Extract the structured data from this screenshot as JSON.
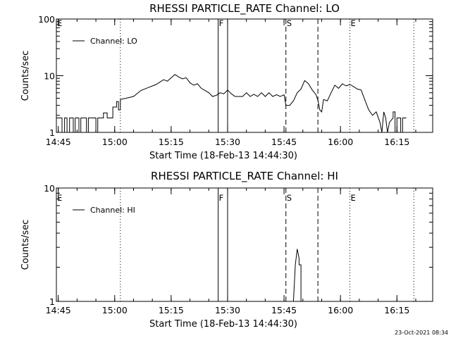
{
  "chart_data": [
    {
      "type": "line",
      "title": "RHESSI PARTICLE_RATE Channel: LO",
      "xlabel": "Start Time (18-Feb-13 14:44:30)",
      "ylabel": "Counts/sec",
      "yscale": "log",
      "ylim": [
        1,
        100
      ],
      "xlim": [
        "14:44:30",
        "16:24:30"
      ],
      "x_ticks": [
        "14:45",
        "15:00",
        "15:15",
        "15:30",
        "15:45",
        "16:00",
        "16:15"
      ],
      "y_ticks": [
        "1",
        "10",
        "100"
      ],
      "legend": "top-left",
      "series": [
        {
          "name": "Channel: LO",
          "points": [
            [
              "14:44:30",
              1.8
            ],
            [
              "14:46:00",
              1.8
            ],
            [
              "14:46:00",
              1.0
            ],
            [
              "14:46:40",
              1.0
            ],
            [
              "14:46:40",
              1.8
            ],
            [
              "14:47:20",
              1.8
            ],
            [
              "14:47:20",
              1.0
            ],
            [
              "14:48:00",
              1.0
            ],
            [
              "14:48:00",
              1.8
            ],
            [
              "14:49:00",
              1.8
            ],
            [
              "14:49:00",
              1.0
            ],
            [
              "14:49:30",
              1.0
            ],
            [
              "14:49:30",
              1.8
            ],
            [
              "14:50:30",
              1.8
            ],
            [
              "14:50:30",
              1.0
            ],
            [
              "14:51:00",
              1.0
            ],
            [
              "14:51:00",
              1.8
            ],
            [
              "14:52:30",
              1.8
            ],
            [
              "14:52:30",
              1.0
            ],
            [
              "14:53:00",
              1.0
            ],
            [
              "14:53:00",
              1.8
            ],
            [
              "14:55:00",
              1.8
            ],
            [
              "14:55:00",
              1.0
            ],
            [
              "14:55:30",
              1.0
            ],
            [
              "14:55:30",
              1.8
            ],
            [
              "14:57:00",
              1.8
            ],
            [
              "14:57:00",
              2.2
            ],
            [
              "14:58:00",
              2.2
            ],
            [
              "14:58:00",
              1.8
            ],
            [
              "14:59:30",
              1.8
            ],
            [
              "14:59:30",
              2.8
            ],
            [
              "15:00:30",
              2.8
            ],
            [
              "15:00:30",
              3.5
            ],
            [
              "15:01:00",
              3.5
            ],
            [
              "15:01:00",
              2.5
            ],
            [
              "15:01:30",
              2.5
            ],
            [
              "15:01:30",
              3.8
            ],
            [
              "15:03:00",
              4.0
            ],
            [
              "15:05:00",
              4.3
            ],
            [
              "15:07:00",
              5.5
            ],
            [
              "15:09:00",
              6.2
            ],
            [
              "15:11:00",
              7.0
            ],
            [
              "15:13:00",
              8.5
            ],
            [
              "15:14:00",
              8.0
            ],
            [
              "15:16:00",
              10.5
            ],
            [
              "15:17:00",
              9.5
            ],
            [
              "15:18:00",
              8.8
            ],
            [
              "15:19:00",
              9.2
            ],
            [
              "15:20:00",
              7.5
            ],
            [
              "15:21:00",
              6.8
            ],
            [
              "15:22:00",
              7.2
            ],
            [
              "15:23:00",
              6.0
            ],
            [
              "15:24:00",
              5.5
            ],
            [
              "15:25:00",
              5.0
            ],
            [
              "15:26:00",
              4.3
            ],
            [
              "15:27:00",
              4.5
            ],
            [
              "15:28:00",
              5.0
            ],
            [
              "15:29:00",
              4.8
            ],
            [
              "15:30:00",
              5.6
            ],
            [
              "15:31:00",
              4.8
            ],
            [
              "15:32:00",
              4.3
            ],
            [
              "15:34:00",
              4.3
            ],
            [
              "15:35:00",
              5.0
            ],
            [
              "15:36:00",
              4.3
            ],
            [
              "15:37:00",
              4.7
            ],
            [
              "15:38:00",
              4.3
            ],
            [
              "15:39:00",
              5.0
            ],
            [
              "15:40:00",
              4.3
            ],
            [
              "15:41:00",
              5.0
            ],
            [
              "15:42:00",
              4.3
            ],
            [
              "15:43:00",
              4.6
            ],
            [
              "15:44:00",
              4.3
            ],
            [
              "15:45:00",
              4.6
            ],
            [
              "15:45:30",
              3.0
            ],
            [
              "15:46:30",
              3.0
            ],
            [
              "15:47:30",
              3.6
            ],
            [
              "15:48:30",
              5.0
            ],
            [
              "15:49:30",
              5.8
            ],
            [
              "15:50:30",
              8.2
            ],
            [
              "15:51:30",
              7.2
            ],
            [
              "15:52:30",
              5.6
            ],
            [
              "15:53:30",
              4.6
            ],
            [
              "15:54:00",
              3.7
            ],
            [
              "15:54:30",
              2.5
            ],
            [
              "15:55:00",
              2.3
            ],
            [
              "15:55:30",
              3.8
            ],
            [
              "15:56:30",
              3.6
            ],
            [
              "15:57:30",
              5.0
            ],
            [
              "15:58:30",
              6.8
            ],
            [
              "15:59:30",
              6.0
            ],
            [
              "16:00:30",
              7.2
            ],
            [
              "16:01:30",
              6.6
            ],
            [
              "16:02:30",
              7.0
            ],
            [
              "16:03:30",
              6.4
            ],
            [
              "16:04:30",
              5.8
            ],
            [
              "16:05:30",
              5.6
            ],
            [
              "16:06:30",
              3.7
            ],
            [
              "16:07:30",
              2.5
            ],
            [
              "16:08:30",
              2.0
            ],
            [
              "16:09:30",
              2.3
            ],
            [
              "16:10:30",
              1.5
            ],
            [
              "16:11:00",
              1.0
            ],
            [
              "16:11:30",
              2.3
            ],
            [
              "16:12:00",
              1.8
            ],
            [
              "16:12:30",
              1.0
            ],
            [
              "16:13:00",
              1.5
            ],
            [
              "16:14:00",
              1.8
            ],
            [
              "16:14:00",
              2.3
            ],
            [
              "16:14:30",
              2.3
            ],
            [
              "16:14:30",
              1.0
            ],
            [
              "16:15:00",
              1.0
            ],
            [
              "16:15:00",
              1.8
            ],
            [
              "16:16:00",
              1.8
            ],
            [
              "16:16:00",
              1.0
            ],
            [
              "16:16:30",
              1.0
            ],
            [
              "16:16:30",
              1.8
            ],
            [
              "16:17:30",
              1.8
            ]
          ]
        }
      ],
      "markers": [
        {
          "label": "E",
          "time": "14:44:30",
          "style": "none"
        },
        {
          "label": "",
          "time": "15:01:30",
          "style": "dotted"
        },
        {
          "label": "F",
          "time": "15:27:30",
          "style": "solid"
        },
        {
          "label": "",
          "time": "15:30:00",
          "style": "solid"
        },
        {
          "label": "S",
          "time": "15:45:30",
          "style": "dashed"
        },
        {
          "label": "",
          "time": "15:54:00",
          "style": "dashed"
        },
        {
          "label": "E",
          "time": "16:02:30",
          "style": "dotted"
        },
        {
          "label": "",
          "time": "16:19:30",
          "style": "dotted"
        }
      ]
    },
    {
      "type": "line",
      "title": "RHESSI PARTICLE_RATE Channel: HI",
      "xlabel": "Start Time (18-Feb-13 14:44:30)",
      "ylabel": "Counts/sec",
      "yscale": "log",
      "ylim": [
        1,
        10
      ],
      "xlim": [
        "14:44:30",
        "16:24:30"
      ],
      "x_ticks": [
        "14:45",
        "15:00",
        "15:15",
        "15:30",
        "15:45",
        "16:00",
        "16:15"
      ],
      "y_ticks": [
        "1",
        "10"
      ],
      "legend": "top-left",
      "series": [
        {
          "name": "Channel: HI",
          "points": [
            [
              "15:47:30",
              1.0
            ],
            [
              "15:48:00",
              2.1
            ],
            [
              "15:48:30",
              2.9
            ],
            [
              "15:49:00",
              2.4
            ],
            [
              "15:49:00",
              2.1
            ],
            [
              "15:49:30",
              2.1
            ],
            [
              "15:49:30",
              1.0
            ]
          ]
        }
      ],
      "markers": [
        {
          "label": "E",
          "time": "14:44:30",
          "style": "none"
        },
        {
          "label": "",
          "time": "15:01:30",
          "style": "dotted"
        },
        {
          "label": "F",
          "time": "15:27:30",
          "style": "solid"
        },
        {
          "label": "",
          "time": "15:30:00",
          "style": "solid"
        },
        {
          "label": "S",
          "time": "15:45:30",
          "style": "dashed"
        },
        {
          "label": "",
          "time": "15:54:00",
          "style": "dashed"
        },
        {
          "label": "E",
          "time": "16:02:30",
          "style": "dotted"
        },
        {
          "label": "",
          "time": "16:19:30",
          "style": "dotted"
        }
      ]
    }
  ],
  "footer": {
    "stamp": "23-Oct-2021 08:34"
  }
}
